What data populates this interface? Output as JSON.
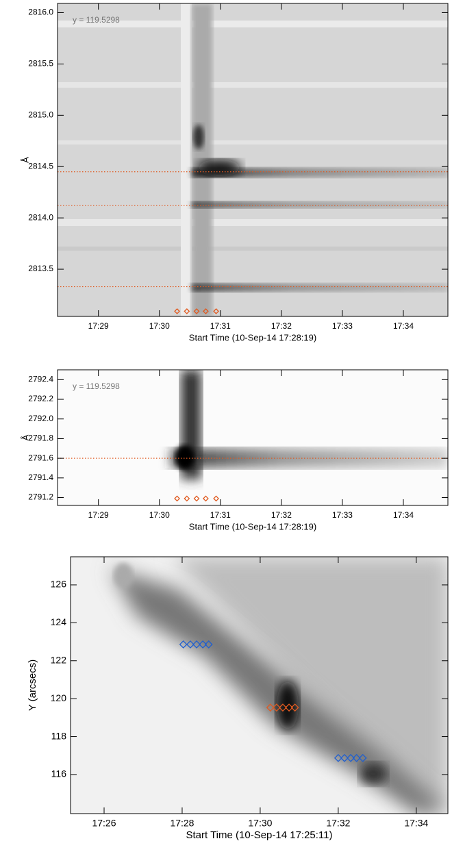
{
  "chart_data": [
    {
      "type": "spectrogram",
      "annotation": "y = 119.5298",
      "xlabel": "Start Time (10-Sep-14 17:28:19)",
      "ylabel": "Å",
      "xlim": [
        28.33,
        34.73
      ],
      "ylim": [
        2813.04,
        2816.09
      ],
      "xticks": [
        {
          "value": 29,
          "label": "17:29"
        },
        {
          "value": 30,
          "label": "17:30"
        },
        {
          "value": 31,
          "label": "17:31"
        },
        {
          "value": 32,
          "label": "17:32"
        },
        {
          "value": 33,
          "label": "17:33"
        },
        {
          "value": 34,
          "label": "17:34"
        }
      ],
      "yticks": [
        {
          "value": 2813.5,
          "label": "2813.5"
        },
        {
          "value": 2814,
          "label": "2814.0"
        },
        {
          "value": 2814.5,
          "label": "2814.5"
        },
        {
          "value": 2815,
          "label": "2815.0"
        },
        {
          "value": 2815.5,
          "label": "2815.5"
        },
        {
          "value": 2816,
          "label": "2816.0"
        }
      ],
      "reference_lines": [
        2814.45,
        2814.12,
        2813.33
      ],
      "reference_color": "#e05a20",
      "markers": [
        {
          "color": "#e05a20",
          "x": [
            30.29,
            30.45,
            30.61,
            30.76,
            30.93
          ],
          "y": [
            2813.09,
            2813.09,
            2813.09,
            2813.09,
            2813.09
          ]
        }
      ]
    },
    {
      "type": "spectrogram",
      "annotation": "y = 119.5298",
      "xlabel": "Start Time (10-Sep-14 17:28:19)",
      "ylabel": "Å",
      "xlim": [
        28.33,
        34.73
      ],
      "ylim": [
        2791.12,
        2792.5
      ],
      "xticks": [
        {
          "value": 29,
          "label": "17:29"
        },
        {
          "value": 30,
          "label": "17:30"
        },
        {
          "value": 31,
          "label": "17:31"
        },
        {
          "value": 32,
          "label": "17:32"
        },
        {
          "value": 33,
          "label": "17:33"
        },
        {
          "value": 34,
          "label": "17:34"
        }
      ],
      "yticks": [
        2791.2,
        2791.4,
        2791.6,
        2791.8,
        {
          "value": 2792,
          "label": "2792.0"
        },
        2792.2,
        2792.4
      ],
      "reference_lines": [
        2791.6
      ],
      "reference_color": "#e05a20",
      "markers": [
        {
          "color": "#e05a20",
          "x": [
            30.29,
            30.45,
            30.61,
            30.76,
            30.93
          ],
          "y": [
            2791.19,
            2791.19,
            2791.19,
            2791.19,
            2791.19
          ]
        }
      ]
    },
    {
      "type": "raster",
      "xlabel": "Start Time (10-Sep-14 17:25:11)",
      "ylabel": "Y (arcsecs)",
      "xlim": [
        25.14,
        34.81
      ],
      "ylim": [
        113.94,
        127.48
      ],
      "xticks": [
        {
          "value": 26,
          "label": "17:26"
        },
        {
          "value": 28,
          "label": "17:28"
        },
        {
          "value": 30,
          "label": "17:30"
        },
        {
          "value": 32,
          "label": "17:32"
        },
        {
          "value": 34,
          "label": "17:34"
        }
      ],
      "yticks": [
        116,
        118,
        120,
        122,
        124,
        126
      ],
      "markers": [
        {
          "color": "#1f5fd0",
          "x": [
            28.03,
            28.21,
            28.37,
            28.53,
            28.68
          ],
          "y": [
            122.86,
            122.86,
            122.86,
            122.86,
            122.86
          ]
        },
        {
          "color": "#e05a20",
          "x": [
            30.26,
            30.42,
            30.58,
            30.74,
            30.89
          ],
          "y": [
            119.53,
            119.53,
            119.53,
            119.53,
            119.53
          ]
        },
        {
          "color": "#1f5fd0",
          "x": [
            32.0,
            32.16,
            32.32,
            32.47,
            32.63
          ],
          "y": [
            116.87,
            116.87,
            116.87,
            116.87,
            116.87
          ]
        }
      ]
    }
  ]
}
